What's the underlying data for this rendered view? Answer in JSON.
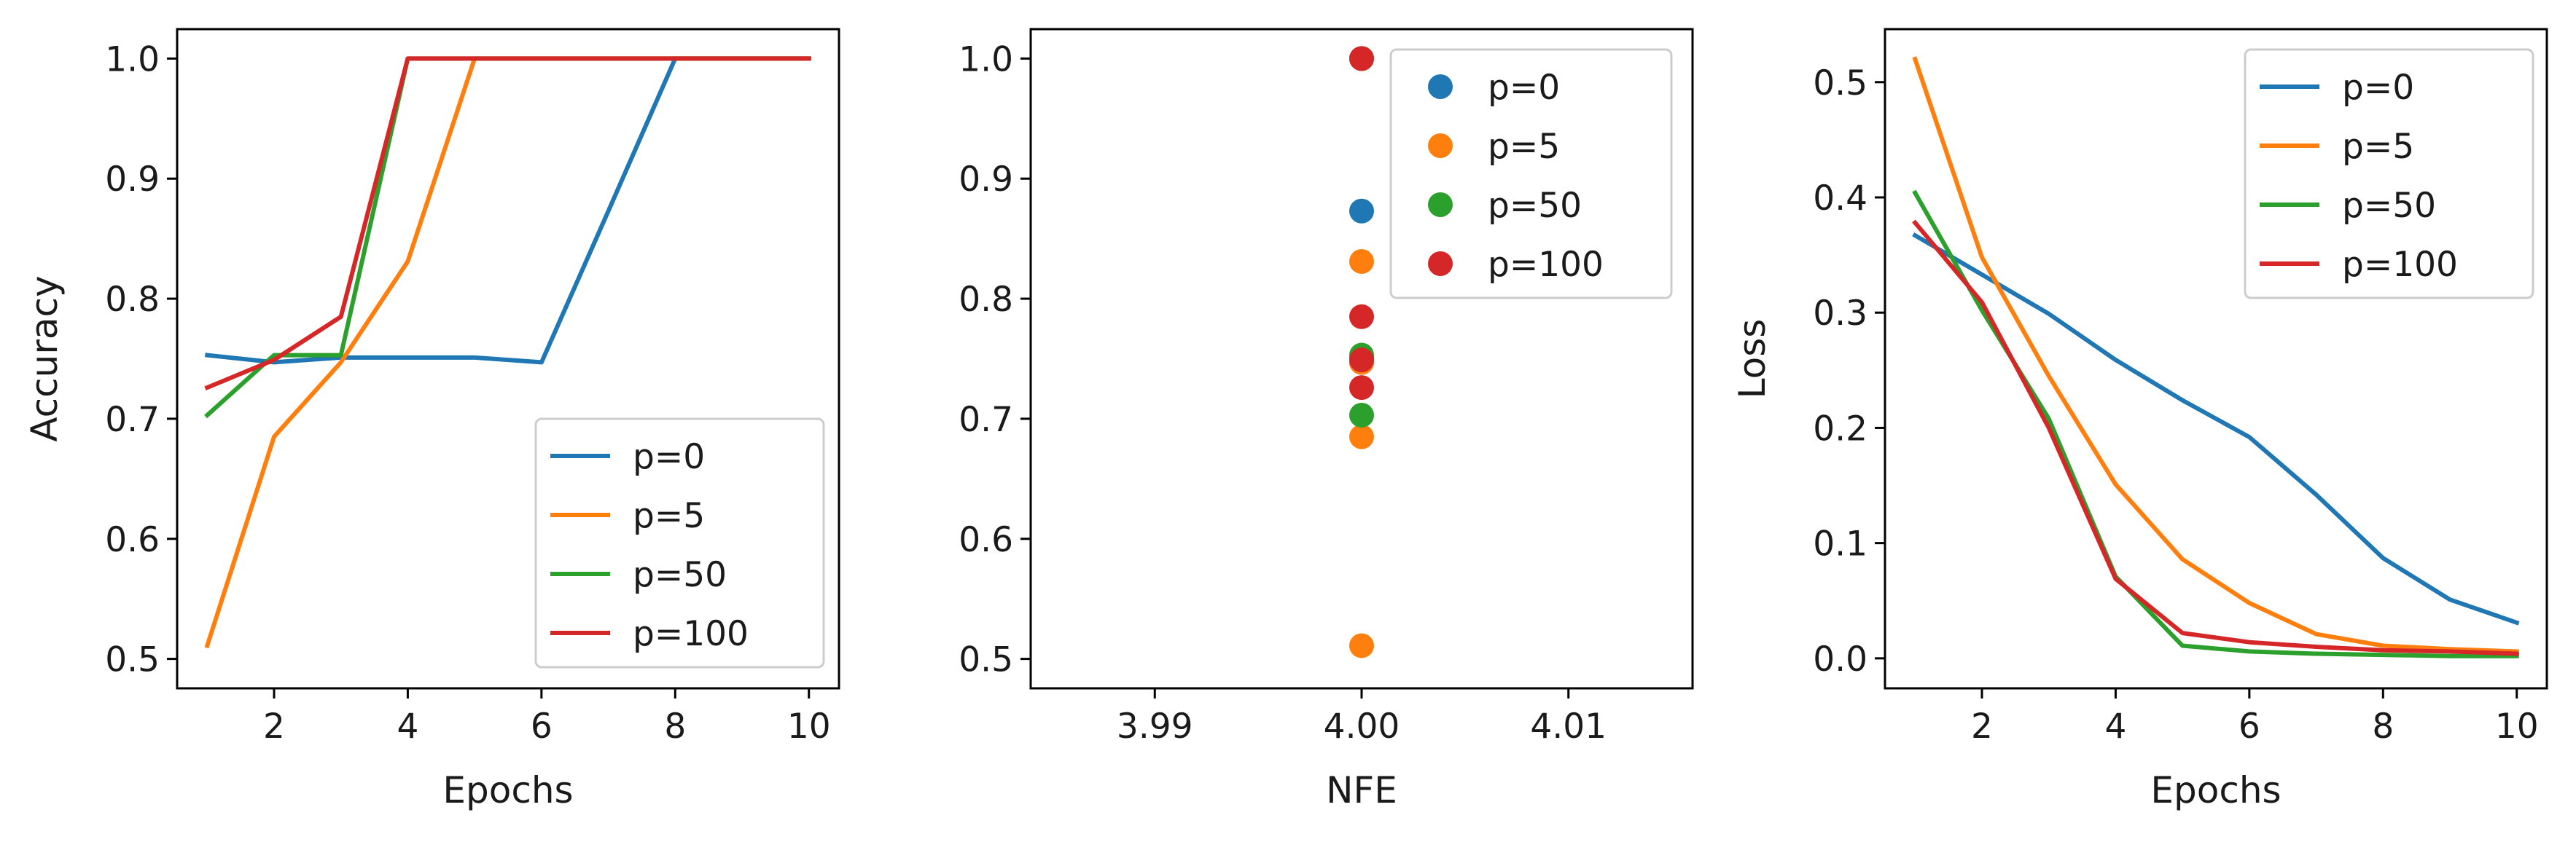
{
  "chart_data": [
    {
      "type": "line",
      "xlabel": "Epochs",
      "ylabel": "Accuracy",
      "xlim": [
        0.55,
        10.45
      ],
      "ylim": [
        0.4755,
        1.0245
      ],
      "xticks": [
        2,
        4,
        6,
        8,
        10
      ],
      "xtick_labels": [
        "2",
        "4",
        "6",
        "8",
        "10"
      ],
      "yticks": [
        0.5,
        0.6,
        0.7,
        0.8,
        0.9,
        1.0
      ],
      "ytick_labels": [
        "0.5",
        "0.6",
        "0.7",
        "0.8",
        "0.9",
        "1.0"
      ],
      "grid": false,
      "legend": "lower-right",
      "x": [
        1,
        2,
        3,
        4,
        5,
        6,
        7,
        8,
        9,
        10
      ],
      "series": [
        {
          "name": "p=0",
          "color": "#1f77b4",
          "values": [
            0.753,
            0.747,
            0.751,
            0.751,
            0.751,
            0.747,
            0.873,
            1.0,
            1.0,
            1.0
          ]
        },
        {
          "name": "p=5",
          "color": "#ff7f0e",
          "values": [
            0.511,
            0.685,
            0.747,
            0.831,
            1.0,
            1.0,
            1.0,
            1.0,
            1.0,
            1.0
          ]
        },
        {
          "name": "p=50",
          "color": "#2ca02c",
          "values": [
            0.703,
            0.753,
            0.753,
            1.0,
            1.0,
            1.0,
            1.0,
            1.0,
            1.0,
            1.0
          ]
        },
        {
          "name": "p=100",
          "color": "#d62728",
          "values": [
            0.726,
            0.749,
            0.785,
            1.0,
            1.0,
            1.0,
            1.0,
            1.0,
            1.0,
            1.0
          ]
        }
      ]
    },
    {
      "type": "scatter",
      "xlabel": "NFE",
      "ylabel": "",
      "xlim": [
        3.984,
        4.016
      ],
      "ylim": [
        0.4755,
        1.0245
      ],
      "xticks": [
        3.99,
        4.0,
        4.01
      ],
      "xtick_labels": [
        "3.99",
        "4.00",
        "4.01"
      ],
      "yticks": [
        0.5,
        0.6,
        0.7,
        0.8,
        0.9,
        1.0
      ],
      "ytick_labels": [
        "0.5",
        "0.6",
        "0.7",
        "0.8",
        "0.9",
        "1.0"
      ],
      "grid": false,
      "legend": "upper-right",
      "series": [
        {
          "name": "p=0",
          "color": "#1f77b4",
          "x": [
            4.0,
            4.0,
            4.0,
            4.0
          ],
          "values": [
            0.751,
            0.747,
            0.873,
            1.0
          ]
        },
        {
          "name": "p=5",
          "color": "#ff7f0e",
          "x": [
            4.0,
            4.0,
            4.0,
            4.0,
            4.0
          ],
          "values": [
            0.511,
            0.685,
            0.747,
            0.831,
            1.0
          ]
        },
        {
          "name": "p=50",
          "color": "#2ca02c",
          "x": [
            4.0,
            4.0,
            4.0
          ],
          "values": [
            0.703,
            0.753,
            1.0
          ]
        },
        {
          "name": "p=100",
          "color": "#d62728",
          "x": [
            4.0,
            4.0,
            4.0,
            4.0
          ],
          "values": [
            0.726,
            0.749,
            0.785,
            1.0
          ]
        }
      ]
    },
    {
      "type": "line",
      "xlabel": "Epochs",
      "ylabel": "Loss",
      "xlim": [
        0.55,
        10.45
      ],
      "ylim": [
        -0.026,
        0.546
      ],
      "xticks": [
        2,
        4,
        6,
        8,
        10
      ],
      "xtick_labels": [
        "2",
        "4",
        "6",
        "8",
        "10"
      ],
      "yticks": [
        0.0,
        0.1,
        0.2,
        0.3,
        0.4,
        0.5
      ],
      "ytick_labels": [
        "0.0",
        "0.1",
        "0.2",
        "0.3",
        "0.4",
        "0.5"
      ],
      "grid": false,
      "legend": "upper-right",
      "x": [
        1,
        2,
        3,
        4,
        5,
        6,
        7,
        8,
        9,
        10
      ],
      "series": [
        {
          "name": "p=0",
          "color": "#1f77b4",
          "values": [
            0.367,
            0.333,
            0.299,
            0.259,
            0.224,
            0.192,
            0.142,
            0.087,
            0.051,
            0.031
          ]
        },
        {
          "name": "p=5",
          "color": "#ff7f0e",
          "values": [
            0.52,
            0.348,
            0.245,
            0.151,
            0.086,
            0.048,
            0.021,
            0.011,
            0.008,
            0.006
          ]
        },
        {
          "name": "p=50",
          "color": "#2ca02c",
          "values": [
            0.404,
            0.302,
            0.208,
            0.071,
            0.011,
            0.006,
            0.004,
            0.003,
            0.002,
            0.002
          ]
        },
        {
          "name": "p=100",
          "color": "#d62728",
          "values": [
            0.378,
            0.309,
            0.2,
            0.069,
            0.022,
            0.014,
            0.01,
            0.007,
            0.006,
            0.004
          ]
        }
      ]
    }
  ]
}
